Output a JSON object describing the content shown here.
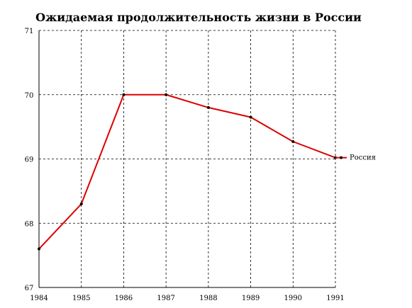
{
  "chart_data": {
    "type": "line",
    "title": "Ожидаемая продолжительность жизни в России",
    "xlabel": "",
    "ylabel": "",
    "x": [
      "1984",
      "1985",
      "1986",
      "1987",
      "1988",
      "1989",
      "1990",
      "1991"
    ],
    "y_ticks": [
      "67",
      "68",
      "69",
      "70",
      "71"
    ],
    "ylim": [
      67,
      71
    ],
    "grid": true,
    "legend_position": "right",
    "series": [
      {
        "name": "Россия",
        "color": "#dd0000",
        "values": [
          67.6,
          68.3,
          70.0,
          70.0,
          69.8,
          69.65,
          69.27,
          69.02
        ]
      }
    ]
  }
}
